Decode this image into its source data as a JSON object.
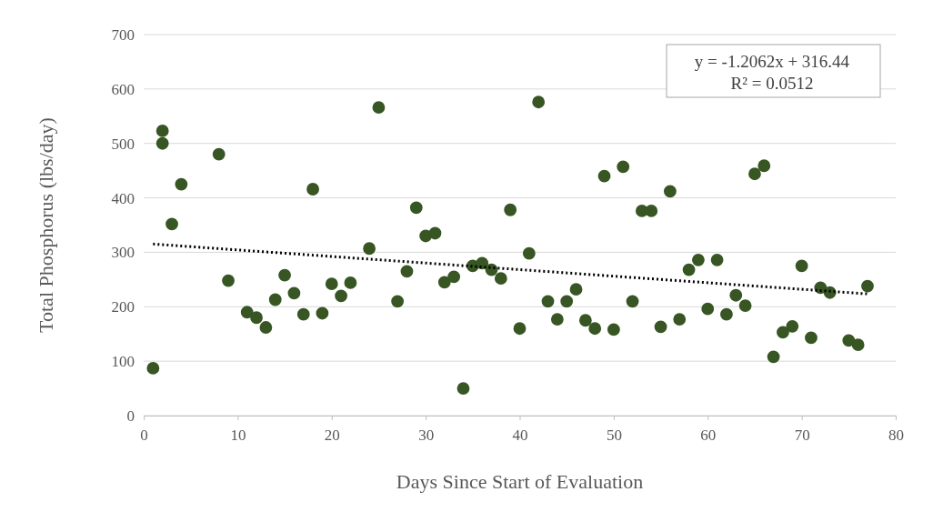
{
  "chart_data": {
    "type": "scatter",
    "xlabel": "Days Since Start of Evaluation",
    "ylabel": "Total Phosphorus (lbs/day)",
    "xlim": [
      0,
      80
    ],
    "xticks": [
      0,
      10,
      20,
      30,
      40,
      50,
      60,
      70,
      80
    ],
    "ylim": [
      0,
      700
    ],
    "yticks": [
      0,
      100,
      200,
      300,
      400,
      500,
      600,
      700
    ],
    "grid": "y",
    "annotations": [
      "y = -1.2062x + 316.44",
      "R² = 0.0512"
    ],
    "series": [
      {
        "color": "#375623",
        "marker": "circle",
        "x": [
          1,
          2,
          2,
          3,
          4,
          8,
          9,
          11,
          12,
          13,
          14,
          15,
          16,
          17,
          18,
          19,
          20,
          21,
          22,
          24,
          25,
          27,
          28,
          29,
          30,
          31,
          32,
          33,
          34,
          35,
          36,
          37,
          38,
          39,
          40,
          41,
          42,
          43,
          44,
          45,
          46,
          47,
          48,
          49,
          50,
          51,
          52,
          53,
          54,
          55,
          56,
          57,
          58,
          59,
          60,
          61,
          62,
          63,
          64,
          65,
          66,
          67,
          68,
          69,
          70,
          71,
          72,
          73,
          75,
          76,
          77
        ],
        "values": [
          87,
          523,
          500,
          352,
          425,
          480,
          248,
          190,
          180,
          162,
          213,
          258,
          225,
          186,
          416,
          188,
          242,
          220,
          244,
          307,
          566,
          210,
          265,
          382,
          330,
          335,
          245,
          255,
          50,
          275,
          280,
          268,
          252,
          378,
          160,
          298,
          576,
          210,
          177,
          210,
          232,
          175,
          160,
          440,
          158,
          457,
          210,
          376,
          376,
          163,
          412,
          177,
          268,
          286,
          196,
          286,
          186,
          221,
          202,
          444,
          459,
          108,
          153,
          164,
          275,
          143,
          235,
          226,
          138,
          130,
          238
        ]
      },
      {
        "type": "line",
        "color": "#000000",
        "marker": "none",
        "line_style": "dotted",
        "x": [
          1,
          77
        ],
        "values": [
          315.2,
          223.6
        ]
      }
    ]
  }
}
